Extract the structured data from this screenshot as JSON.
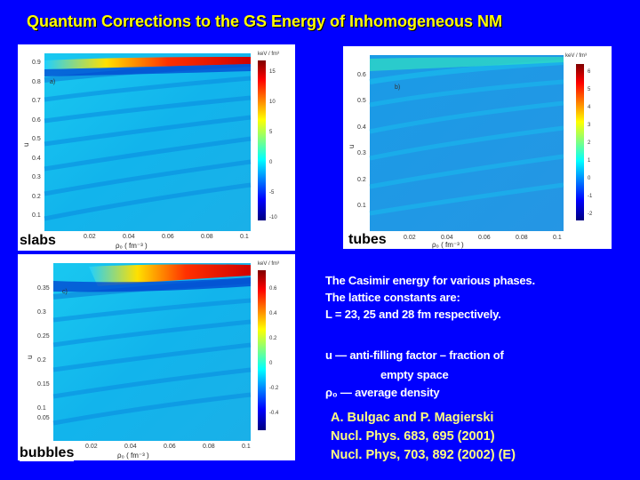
{
  "title": "Quantum Corrections to the GS Energy of Inhomogeneous NM",
  "panels": {
    "a": {
      "side_label": "slabs",
      "tag": "a)",
      "ylabel": "u",
      "xlabel": "ρ₀ ( fm⁻³ )",
      "unit": "keV / fm³",
      "yticks": [
        "0.9",
        "0.8",
        "0.7",
        "0.6",
        "0.5",
        "0.4",
        "0.3",
        "0.2",
        "0.1"
      ],
      "xticks": [
        "0.02",
        "0.04",
        "0.06",
        "0.08",
        "0.1"
      ],
      "cbticks": [
        "15",
        "10",
        "5",
        "0",
        "-5",
        "-10"
      ]
    },
    "b": {
      "side_label": "tubes",
      "tag": "b)",
      "ylabel": "u",
      "xlabel": "ρ₀ ( fm⁻³ )",
      "unit": "keV / fm³",
      "yticks": [
        "0.6",
        "0.5",
        "0.4",
        "0.3",
        "0.2",
        "0.1"
      ],
      "xticks": [
        "0.02",
        "0.04",
        "0.06",
        "0.08",
        "0.1"
      ],
      "cbticks": [
        "6",
        "5",
        "4",
        "3",
        "2",
        "1",
        "0",
        "-1",
        "-2"
      ]
    },
    "c": {
      "side_label": "bubbles",
      "tag": "c)",
      "ylabel": "u",
      "xlabel": "ρ₀ ( fm⁻³ )",
      "unit": "keV / fm³",
      "yticks": [
        "0.35",
        "0.3",
        "0.25",
        "0.2",
        "0.15",
        "0.1",
        "0.05"
      ],
      "xticks": [
        "0.02",
        "0.04",
        "0.06",
        "0.08",
        "0.1"
      ],
      "cbticks": [
        "0.6",
        "0.4",
        "0.2",
        "0",
        "-0.2",
        "-0.4"
      ]
    }
  },
  "description": {
    "line1": "The Casimir energy for  various phases.",
    "line2": "The lattice constants are:",
    "line3": "L = 23, 25 and 28 fm respectively.",
    "u_def": "u   —   anti-filling factor – fraction of",
    "u_def2": "empty space",
    "rho_def": "ρ₀  —   average density"
  },
  "reference": {
    "authors": "A. Bulgac and P. Magierski",
    "cite1": "Nucl. Phys. 683, 695 (2001)",
    "cite2": "Nucl. Phys, 703, 892 (2002) (E)"
  },
  "colors": {
    "background": "#0000ff",
    "title": "#ffff00",
    "reference": "#ffff80"
  }
}
